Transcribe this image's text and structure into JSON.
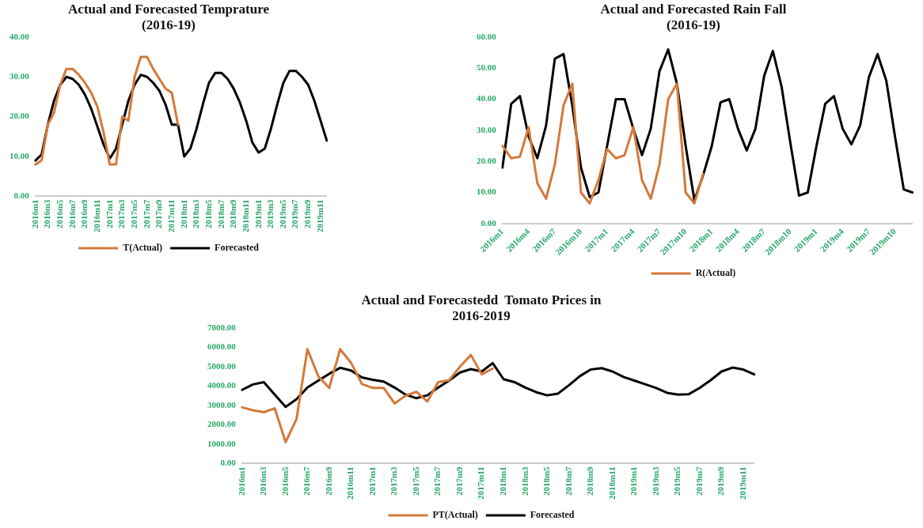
{
  "chart_data": [
    {
      "type": "line",
      "title": "Actual and Forecasted Temprature\n(2016-19)",
      "categories": [
        "2016m1",
        null,
        "2016m3",
        null,
        "2016m5",
        null,
        "2016m7",
        null,
        "2016m9",
        null,
        "2016m11",
        null,
        "2017m1",
        null,
        "2017m3",
        null,
        "2017m5",
        null,
        "2017m7",
        null,
        "2017m9",
        null,
        "2017m11",
        null,
        "2018m1",
        null,
        "2018m3",
        null,
        "2018m5",
        null,
        "2018m7",
        null,
        "2018m9",
        null,
        "2018m11",
        null,
        "2019m1",
        null,
        "2019m3",
        null,
        "2019m5",
        null,
        "2019m7",
        null,
        "2019m9",
        null,
        "2019m11",
        null
      ],
      "series": [
        {
          "name": "T(Actual)",
          "color": "#d4793a",
          "values": [
            8,
            9,
            18,
            21,
            28,
            32,
            32,
            30.5,
            28.5,
            26,
            22.5,
            16,
            8,
            8,
            20,
            19,
            30,
            35,
            35,
            32,
            29.5,
            27,
            26,
            18,
            null,
            null,
            null,
            null,
            null,
            null,
            null,
            null,
            null,
            null,
            null,
            null,
            null,
            null,
            null,
            null,
            null,
            null,
            null,
            null,
            null,
            null,
            null,
            null
          ]
        },
        {
          "name": "Forecasted",
          "color": "#000000",
          "values": [
            9,
            10.5,
            18,
            24,
            28,
            30,
            29.5,
            28,
            25.5,
            22,
            17.5,
            13,
            9.5,
            12,
            18,
            24,
            28,
            30.5,
            30,
            28.5,
            26.5,
            23,
            18,
            18,
            10,
            12,
            17,
            23,
            28.5,
            31,
            31,
            29.5,
            27,
            23.5,
            19,
            13.5,
            11,
            12,
            17,
            23,
            28.5,
            31.5,
            31.5,
            30,
            28,
            24,
            19,
            14
          ]
        }
      ],
      "ylim": [
        0,
        40
      ],
      "yticks": [
        {
          "value": 0,
          "label": "0.00"
        },
        {
          "value": 10,
          "label": "10.00"
        },
        {
          "value": 20,
          "label": "20.00"
        },
        {
          "value": 30,
          "label": "30.00"
        },
        {
          "value": 40,
          "label": "40.00"
        }
      ],
      "grid": false,
      "legend": "bottom"
    },
    {
      "type": "line",
      "title": "Actual and Forecasted Rain Fall\n(2016-19)",
      "categories": [
        "2016m1",
        null,
        null,
        "2016m4",
        null,
        null,
        "2016m7",
        null,
        null,
        "2016m10",
        null,
        null,
        "2017m1",
        null,
        null,
        "2017m4",
        null,
        null,
        "2017m7",
        null,
        null,
        "2017m10",
        null,
        null,
        "2018m1",
        null,
        null,
        "2018m4",
        null,
        null,
        "2018m7",
        null,
        null,
        "2018m10",
        null,
        null,
        "2019m1",
        null,
        null,
        "2019m4",
        null,
        null,
        "2019m7",
        null,
        null,
        "2019m10",
        null,
        null
      ],
      "series": [
        {
          "name": "R(Actual)",
          "color": "#d4793a",
          "values": [
            25,
            21,
            21.5,
            31,
            13,
            8,
            19,
            38,
            45,
            10,
            6.5,
            14,
            24,
            21,
            22,
            31,
            14,
            8,
            19,
            40,
            45,
            10,
            6.5,
            16,
            null,
            null,
            null,
            null,
            null,
            null,
            null,
            null,
            null,
            null,
            null,
            null,
            null,
            null,
            null,
            null,
            null,
            null,
            null,
            null,
            null,
            null,
            null,
            null
          ]
        },
        {
          "color": "#000000",
          "values": [
            18,
            38.5,
            41,
            28,
            21,
            31.5,
            53,
            54.5,
            38,
            18,
            8.5,
            10,
            25,
            40,
            40,
            30.5,
            22,
            30.5,
            49,
            56,
            45,
            25,
            7.5,
            15.5,
            25,
            39,
            40,
            30.5,
            23.5,
            30.5,
            47.5,
            55.5,
            44,
            26,
            9,
            10,
            25,
            38.5,
            41,
            30.5,
            25.5,
            31.5,
            47,
            54.5,
            46,
            28,
            11,
            10
          ]
        }
      ],
      "ylim": [
        0,
        60
      ],
      "yticks": [
        {
          "value": 0,
          "label": "0.00"
        },
        {
          "value": 10,
          "label": "10.00"
        },
        {
          "value": 20,
          "label": "20.00"
        },
        {
          "value": 30,
          "label": "30.00"
        },
        {
          "value": 40,
          "label": "40.00"
        },
        {
          "value": 50,
          "label": "50.00"
        },
        {
          "value": 60,
          "label": "60.00"
        }
      ],
      "grid": false,
      "legend": "bottom"
    },
    {
      "type": "line",
      "title": "Actual and Forecastedd  Tomato Prices in\n2016-2019",
      "categories": [
        "2016m1",
        null,
        "2016m3",
        null,
        "2016m5",
        null,
        "2016m7",
        null,
        "2016m9",
        null,
        "2016m11",
        null,
        "2017m1",
        null,
        "2017m3",
        null,
        "2017m5",
        null,
        "2017m7",
        null,
        "2017m9",
        null,
        "2017m11",
        null,
        "2018m1",
        null,
        "2018m3",
        null,
        "2018m5",
        null,
        "2018m7",
        null,
        "2018m9",
        null,
        "2018m11",
        null,
        "2019m1",
        null,
        "2019m3",
        null,
        "2019m5",
        null,
        "2019m7",
        null,
        "2019m9",
        null,
        "2019m11",
        null
      ],
      "series": [
        {
          "name": "PT(Actual)",
          "color": "#d4793a",
          "values": [
            2900,
            2750,
            2650,
            2850,
            1100,
            2300,
            5900,
            4500,
            3900,
            5900,
            5200,
            4100,
            3900,
            3900,
            3100,
            3500,
            3700,
            3200,
            4200,
            4300,
            5000,
            5600,
            4600,
            4900,
            null,
            null,
            null,
            null,
            null,
            null,
            null,
            null,
            null,
            null,
            null,
            null,
            null,
            null,
            null,
            null,
            null,
            null,
            null,
            null,
            null,
            null,
            null,
            null
          ]
        },
        {
          "name": "Forecasted",
          "color": "#000000",
          "values": [
            3800,
            4080,
            4200,
            3560,
            2920,
            3320,
            3920,
            4280,
            4630,
            4940,
            4800,
            4440,
            4320,
            4230,
            3920,
            3560,
            3370,
            3520,
            3920,
            4280,
            4700,
            4870,
            4750,
            5180,
            4350,
            4200,
            3920,
            3680,
            3520,
            3610,
            4040,
            4510,
            4850,
            4920,
            4750,
            4470,
            4280,
            4090,
            3900,
            3650,
            3560,
            3580,
            3900,
            4300,
            4750,
            4950,
            4850,
            4600
          ]
        }
      ],
      "ylim": [
        0,
        7000
      ],
      "yticks": [
        {
          "value": 0,
          "label": "0.00"
        },
        {
          "value": 1000,
          "label": "1000.00"
        },
        {
          "value": 2000,
          "label": "2000.00"
        },
        {
          "value": 3000,
          "label": "3000.00"
        },
        {
          "value": 4000,
          "label": "4000.00"
        },
        {
          "value": 5000,
          "label": "5000.00"
        },
        {
          "value": 6000,
          "label": "6000.00"
        },
        {
          "value": 7000,
          "label": "7000.00"
        }
      ],
      "grid": false,
      "legend": "bottom"
    }
  ]
}
